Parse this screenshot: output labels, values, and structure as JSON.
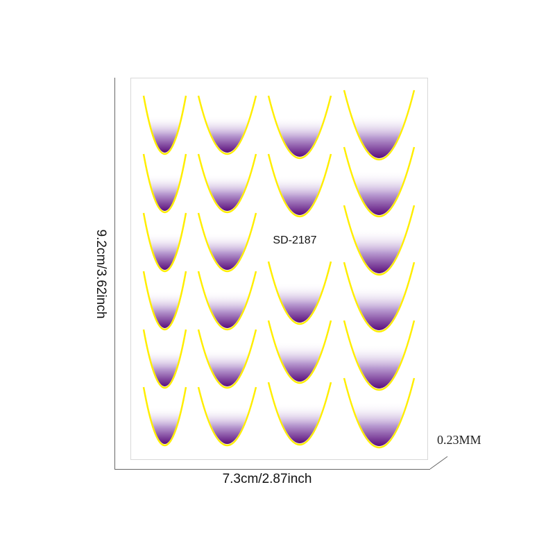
{
  "product_code": "SD-2187",
  "dimensions": {
    "width_label": "7.3cm/2.87inch",
    "height_label": "9.2cm/3.62inch",
    "thickness_label": "0.23MM"
  },
  "colors": {
    "fill_dark": "#5b0f7c",
    "fill_light": "#ffffff",
    "outline": "#ffee00",
    "sheet_border": "#d8d8d8",
    "dimension_line": "#666666"
  },
  "sticker_shape": "french-tip-curve",
  "sticker_counts_per_column": [
    6,
    6,
    5,
    6
  ]
}
